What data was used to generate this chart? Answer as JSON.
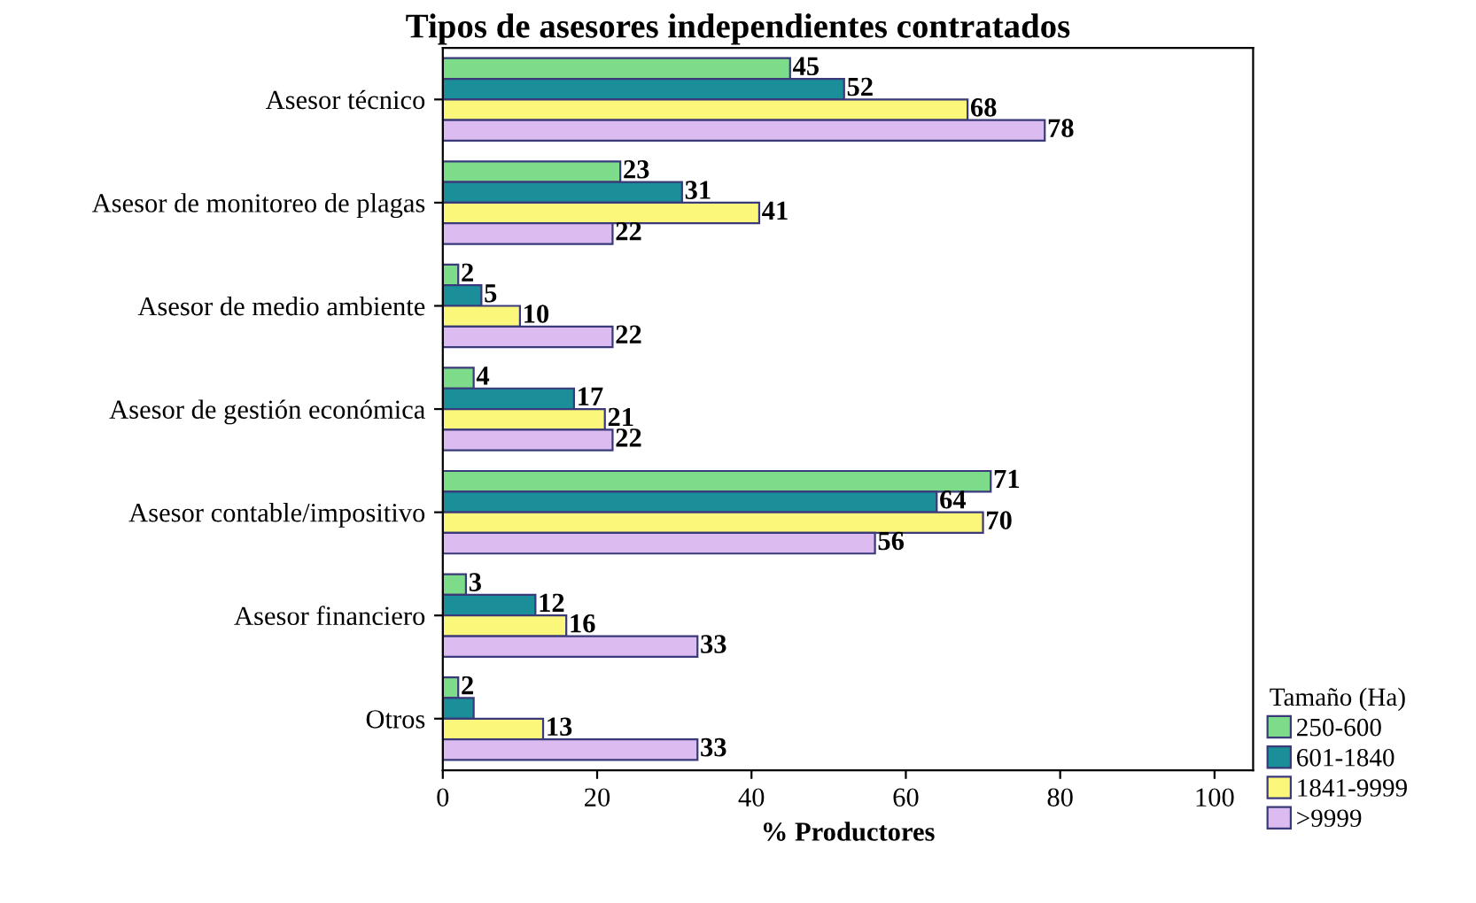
{
  "chart_data": {
    "type": "bar",
    "orientation": "horizontal",
    "title": "Tipos de asesores independientes contratados",
    "categories": [
      "Asesor técnico",
      "Asesor de monitoreo de plagas",
      "Asesor de medio ambiente",
      "Asesor de gestión económica",
      "Asesor contable/impositivo",
      "Asesor financiero",
      "Otros"
    ],
    "series": [
      {
        "name": "250-600",
        "color": "#7ddc8a",
        "values": [
          45,
          23,
          2,
          4,
          71,
          3,
          2
        ],
        "value_labels": [
          "45",
          "23",
          "2",
          "4",
          "71",
          "3",
          "2"
        ]
      },
      {
        "name": "601-1840",
        "color": "#1a8f9a",
        "values": [
          52,
          31,
          5,
          17,
          64,
          12,
          4
        ],
        "value_labels": [
          "52",
          "31",
          "5",
          "17",
          "64",
          "12",
          null
        ]
      },
      {
        "name": "1841-9999",
        "color": "#fbf77a",
        "values": [
          68,
          41,
          10,
          21,
          70,
          16,
          13
        ],
        "value_labels": [
          "68",
          "41",
          "10",
          "21",
          "70",
          "16",
          "13"
        ]
      },
      {
        "name": ">9999",
        "color": "#dcbcf0",
        "values": [
          78,
          22,
          22,
          22,
          56,
          33,
          33
        ],
        "value_labels": [
          "78",
          "22",
          "22",
          "22",
          "56",
          "33",
          "33"
        ]
      }
    ],
    "xlabel": "% Productores",
    "legend_title": "Tamaño (Ha)",
    "legend": "bottom right",
    "xlim": [
      0,
      105
    ],
    "xticks": [
      0,
      20,
      40,
      60,
      80,
      100
    ],
    "grid": false
  }
}
